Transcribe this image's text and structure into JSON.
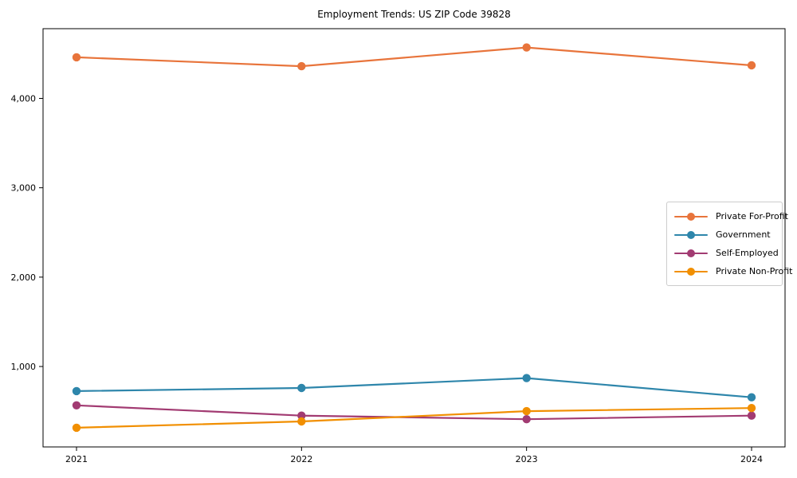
{
  "chart_data": {
    "type": "line",
    "title": "Employment Trends: US ZIP Code 39828",
    "x": [
      2021,
      2022,
      2023,
      2024
    ],
    "xtick_labels": [
      "2021",
      "2022",
      "2023",
      "2024"
    ],
    "series": [
      {
        "name": "Private For-Profit",
        "color": "#E8743B",
        "values": [
          4460,
          4360,
          4570,
          4370
        ]
      },
      {
        "name": "Government",
        "color": "#2E86AB",
        "values": [
          725,
          760,
          870,
          655
        ]
      },
      {
        "name": "Self-Employed",
        "color": "#A23B72",
        "values": [
          565,
          450,
          410,
          450
        ]
      },
      {
        "name": "Private Non-Profit",
        "color": "#F18F01",
        "values": [
          315,
          385,
          500,
          535
        ]
      }
    ],
    "ylim": [
      100,
      4780
    ],
    "yticks": [
      1000,
      2000,
      3000,
      4000
    ],
    "ytick_labels": [
      "1,000",
      "2,000",
      "3,000",
      "4,000"
    ],
    "xlabel": "",
    "ylabel": "",
    "grid": false,
    "legend_position": "center right",
    "spine_color": "#000000",
    "background_color": "#ffffff"
  }
}
